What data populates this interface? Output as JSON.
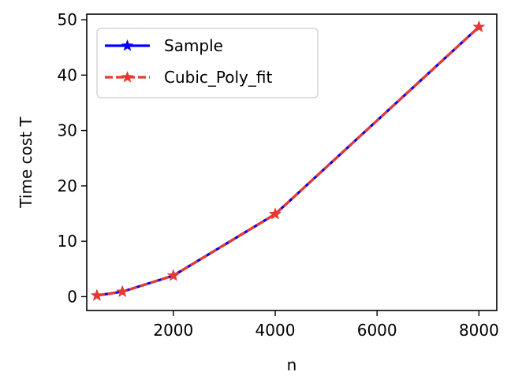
{
  "chart_data": {
    "type": "line",
    "xlabel": "n",
    "ylabel": "Time cost T",
    "xlim": [
      300,
      8350
    ],
    "ylim": [
      -2.5,
      51
    ],
    "xticks": [
      2000,
      4000,
      6000,
      8000
    ],
    "yticks": [
      0,
      10,
      20,
      30,
      40,
      50
    ],
    "grid": false,
    "legend_position": "top-left",
    "series": [
      {
        "name": "Sample",
        "color": "#0000ff",
        "marker": "star",
        "linestyle": "solid",
        "x": [
          500,
          1000,
          2000,
          4000,
          8000
        ],
        "y": [
          0.2,
          0.9,
          3.8,
          14.9,
          48.7
        ]
      },
      {
        "name": "Cubic_Poly_fit",
        "color": "#e8392e",
        "marker": "star",
        "linestyle": "dashed",
        "x": [
          500,
          1000,
          2000,
          4000,
          8000
        ],
        "y": [
          0.2,
          0.9,
          3.8,
          14.9,
          48.7
        ]
      }
    ]
  }
}
